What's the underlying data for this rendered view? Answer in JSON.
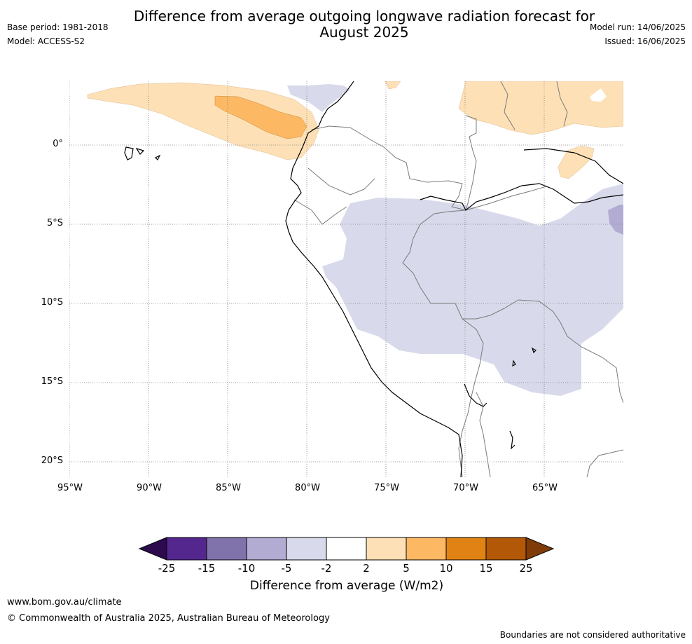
{
  "header": {
    "title_line1": "Difference from average outgoing longwave radiation forecast for",
    "title_line2": "August 2025",
    "base_period": "Base period: 1981-2018",
    "model": "Model: ACCESS-S2",
    "model_run": "Model run: 14/06/2025",
    "issued": "Issued: 16/06/2025"
  },
  "map": {
    "lat_labels": [
      "0°",
      "5°S",
      "10°S",
      "15°S",
      "20°S"
    ],
    "lon_labels": [
      "95°W",
      "90°W",
      "85°W",
      "80°W",
      "75°W",
      "70°W",
      "65°W"
    ]
  },
  "colorbar": {
    "ticks": [
      "-25",
      "-15",
      "-10",
      "-5",
      "-2",
      "2",
      "5",
      "10",
      "15",
      "25"
    ],
    "colors": [
      "#2d0a4e",
      "#54278f",
      "#8073ac",
      "#b2abd2",
      "#d8daeb",
      "#ffffff",
      "#fee0b6",
      "#fdb863",
      "#e08214",
      "#b35806",
      "#7f3b08"
    ],
    "label": "Difference from average (W/m2)"
  },
  "footer": {
    "url": "www.bom.gov.au/climate",
    "copyright": "© Commonwealth of Australia 2025, Australian Bureau of Meteorology",
    "note": "Boundaries are not considered authoritative"
  }
}
